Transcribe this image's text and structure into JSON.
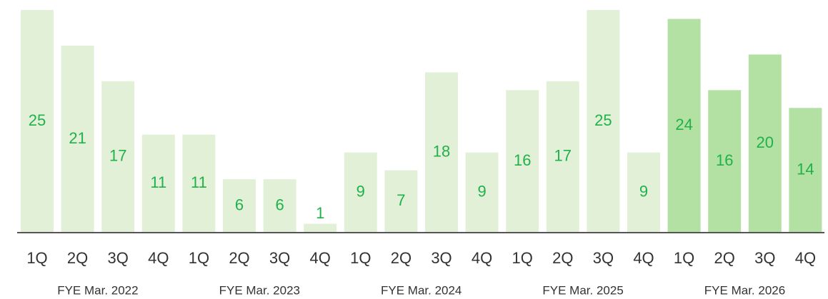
{
  "chart_data": {
    "type": "bar",
    "categories": [
      "1Q",
      "2Q",
      "3Q",
      "4Q",
      "1Q",
      "2Q",
      "3Q",
      "4Q",
      "1Q",
      "2Q",
      "3Q",
      "4Q",
      "1Q",
      "2Q",
      "3Q",
      "4Q",
      "1Q",
      "2Q",
      "3Q",
      "4Q"
    ],
    "groups": [
      "FYE Mar. 2022",
      "FYE Mar. 2023",
      "FYE Mar. 2024",
      "FYE Mar. 2025",
      "FYE Mar. 2026"
    ],
    "values": [
      25,
      21,
      17,
      11,
      11,
      6,
      6,
      1,
      9,
      7,
      18,
      9,
      16,
      17,
      25,
      9,
      24,
      16,
      20,
      14
    ],
    "colors": [
      "#e3f0d8",
      "#e3f0d8",
      "#e3f0d8",
      "#e3f0d8",
      "#e3f0d8",
      "#e3f0d8",
      "#e3f0d8",
      "#e3f0d8",
      "#e3f0d8",
      "#e3f0d8",
      "#e3f0d8",
      "#e3f0d8",
      "#e3f0d8",
      "#e3f0d8",
      "#e3f0d8",
      "#e3f0d8",
      "#b3e0a3",
      "#b3e0a3",
      "#b3e0a3",
      "#b3e0a3"
    ],
    "label_color": "#1fb24a",
    "ylim": [
      0,
      25
    ]
  }
}
